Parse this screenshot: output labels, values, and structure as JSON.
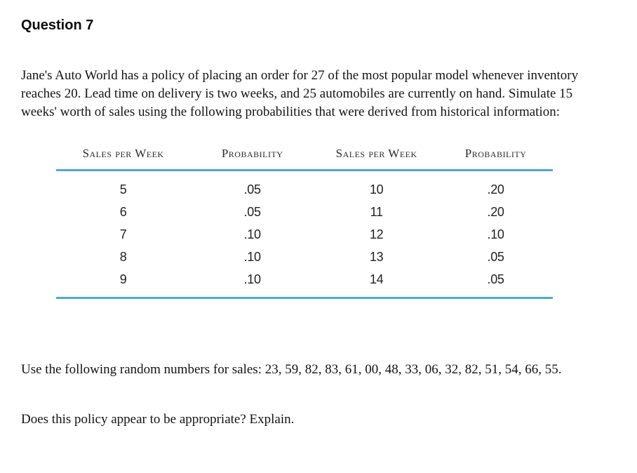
{
  "page": {
    "title": "Question 7",
    "intro": "Jane's Auto World has a policy of placing an order for 27 of the most popular model whenever inventory reaches 20. Lead time on delivery is two weeks, and 25 automobiles are currently on hand. Simulate 15 weeks' worth of sales using the following probabilities that were derived from historical information:",
    "random_numbers": "Use the following random numbers for sales: 23, 59, 82, 83, 61, 00, 48, 33, 06, 32, 82, 51, 54, 66, 55.",
    "question": "Does this policy appear to be appropriate? Explain."
  },
  "table": {
    "rule_color": "#4aa8e0",
    "headers": [
      "Sales per Week",
      "Probability",
      "Sales per Week",
      "Probability"
    ],
    "rows": [
      [
        "5",
        ".05",
        "10",
        ".20"
      ],
      [
        "6",
        ".05",
        "11",
        ".20"
      ],
      [
        "7",
        ".10",
        "12",
        ".10"
      ],
      [
        "8",
        ".10",
        "13",
        ".05"
      ],
      [
        "9",
        ".10",
        "14",
        ".05"
      ]
    ]
  }
}
